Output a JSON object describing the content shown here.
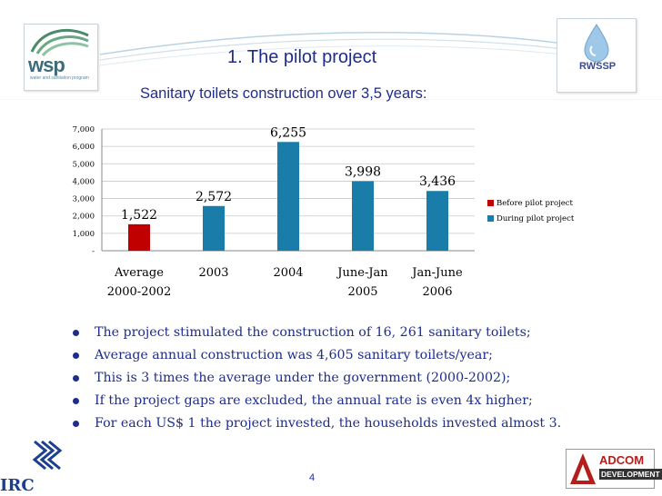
{
  "slide": {
    "title": "1.   The pilot project",
    "subtitle": "Sanitary toilets construction over 3,5 years:",
    "page_number": "4"
  },
  "logos": {
    "wsp_text": "wsp",
    "wsp_sub": "water and sanitation program",
    "rwssp_text": "RWSSP",
    "irc_text": "IRC",
    "adcom_line1": "ADCOM",
    "adcom_line2": "DEVELOPMENT"
  },
  "colors": {
    "before": "#c00000",
    "during": "#1a7ca8",
    "text_blue": "#1f2d8a"
  },
  "chart_data": {
    "type": "bar",
    "categories": [
      [
        "Average",
        "2000-2002"
      ],
      [
        "2003"
      ],
      [
        "2004"
      ],
      [
        "June-Jan",
        "2005"
      ],
      [
        "Jan-June",
        "2006"
      ]
    ],
    "series": [
      {
        "name": "Before pilot project",
        "color": "#c00000",
        "values": [
          1522,
          null,
          null,
          null,
          null
        ]
      },
      {
        "name": "During pilot project",
        "color": "#1a7ca8",
        "values": [
          null,
          2572,
          6255,
          3998,
          3436
        ]
      }
    ],
    "data_labels": [
      "1,522",
      "2,572",
      "6,255",
      "3,998",
      "3,436"
    ],
    "y_ticks": [
      0,
      1000,
      2000,
      3000,
      4000,
      5000,
      6000,
      7000
    ],
    "y_tick_labels": [
      "-",
      "1,000",
      "2,000",
      "3,000",
      "4,000",
      "5,000",
      "6,000",
      "7,000"
    ],
    "ylim": [
      0,
      7000
    ],
    "grid": true,
    "legend_position": "right"
  },
  "bullets": [
    "The project stimulated the construction of 16, 261 sanitary toilets;",
    "Average annual construction was 4,605 sanitary toilets/year;",
    "This is 3 times the average under the government (2000-2002);",
    "If the project gaps are excluded, the annual rate is even 4x higher;",
    "For each US$ 1 the project invested, the households invested almost 3."
  ]
}
